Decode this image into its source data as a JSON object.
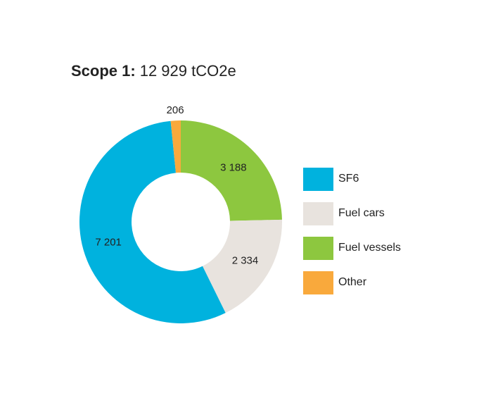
{
  "chart_data": {
    "type": "donut",
    "title_label": "Scope 1:",
    "title_value": "12 929 tCO2e",
    "categories": [
      "SF6",
      "Fuel cars",
      "Fuel vessels",
      "Other"
    ],
    "values": [
      7201,
      2334,
      3188,
      206
    ],
    "value_labels": [
      "7 201",
      "2 334",
      "3 188",
      "206"
    ],
    "colors": [
      "#00b2de",
      "#e8e3de",
      "#8dc73f",
      "#f9a93c"
    ],
    "legend": "right"
  }
}
